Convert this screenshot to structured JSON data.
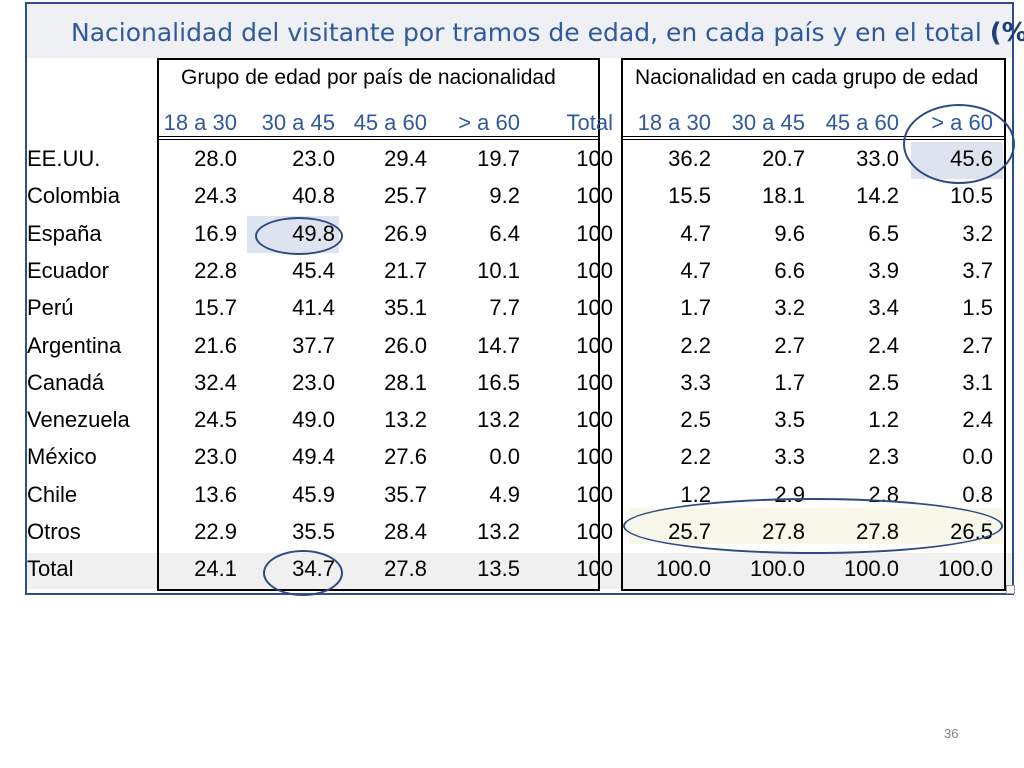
{
  "slide": {
    "title": "Nacionalidad del visitante por tramos de edad, en cada país y en el total",
    "title_suffix": "(%)",
    "page_number": "36"
  },
  "table": {
    "group1_header": "Grupo de edad por país de nacionalidad",
    "group2_header": "Nacionalidad en cada grupo de edad",
    "group1_columns": [
      "18 a 30",
      "30 a 45",
      "45 a 60",
      "> a 60",
      "Total"
    ],
    "group2_columns": [
      "18 a 30",
      "30 a 45",
      "45 a 60",
      "> a 60"
    ],
    "rows": [
      {
        "label": "EE.UU.",
        "g1": [
          "28.0",
          "23.0",
          "29.4",
          "19.7",
          "100"
        ],
        "g2": [
          "36.2",
          "20.7",
          "33.0",
          "45.6"
        ]
      },
      {
        "label": "Colombia",
        "g1": [
          "24.3",
          "40.8",
          "25.7",
          "9.2",
          "100"
        ],
        "g2": [
          "15.5",
          "18.1",
          "14.2",
          "10.5"
        ]
      },
      {
        "label": "España",
        "g1": [
          "16.9",
          "49.8",
          "26.9",
          "6.4",
          "100"
        ],
        "g2": [
          "4.7",
          "9.6",
          "6.5",
          "3.2"
        ]
      },
      {
        "label": "Ecuador",
        "g1": [
          "22.8",
          "45.4",
          "21.7",
          "10.1",
          "100"
        ],
        "g2": [
          "4.7",
          "6.6",
          "3.9",
          "3.7"
        ]
      },
      {
        "label": "Perú",
        "g1": [
          "15.7",
          "41.4",
          "35.1",
          "7.7",
          "100"
        ],
        "g2": [
          "1.7",
          "3.2",
          "3.4",
          "1.5"
        ]
      },
      {
        "label": "Argentina",
        "g1": [
          "21.6",
          "37.7",
          "26.0",
          "14.7",
          "100"
        ],
        "g2": [
          "2.2",
          "2.7",
          "2.4",
          "2.7"
        ]
      },
      {
        "label": "Canadá",
        "g1": [
          "32.4",
          "23.0",
          "28.1",
          "16.5",
          "100"
        ],
        "g2": [
          "3.3",
          "1.7",
          "2.5",
          "3.1"
        ]
      },
      {
        "label": "Venezuela",
        "g1": [
          "24.5",
          "49.0",
          "13.2",
          "13.2",
          "100"
        ],
        "g2": [
          "2.5",
          "3.5",
          "1.2",
          "2.4"
        ]
      },
      {
        "label": "México",
        "g1": [
          "23.0",
          "49.4",
          "27.6",
          "0.0",
          "100"
        ],
        "g2": [
          "2.2",
          "3.3",
          "2.3",
          "0.0"
        ]
      },
      {
        "label": "Chile",
        "g1": [
          "13.6",
          "45.9",
          "35.7",
          "4.9",
          "100"
        ],
        "g2": [
          "1.2",
          "2.9",
          "2.8",
          "0.8"
        ]
      },
      {
        "label": "Otros",
        "g1": [
          "22.9",
          "35.5",
          "28.4",
          "13.2",
          "100"
        ],
        "g2": [
          "25.7",
          "27.8",
          "27.8",
          "26.5"
        ]
      },
      {
        "label": "Total",
        "g1": [
          "24.1",
          "34.7",
          "27.8",
          "13.5",
          "100"
        ],
        "g2": [
          "100.0",
          "100.0",
          "100.0",
          "100.0"
        ]
      }
    ]
  },
  "colors": {
    "title": "#2f5a9e",
    "header_blue": "#2f5a9e",
    "frame": "#2e4f8f",
    "highlight": "#dde4ef",
    "ellipse": "#2e4a82"
  }
}
